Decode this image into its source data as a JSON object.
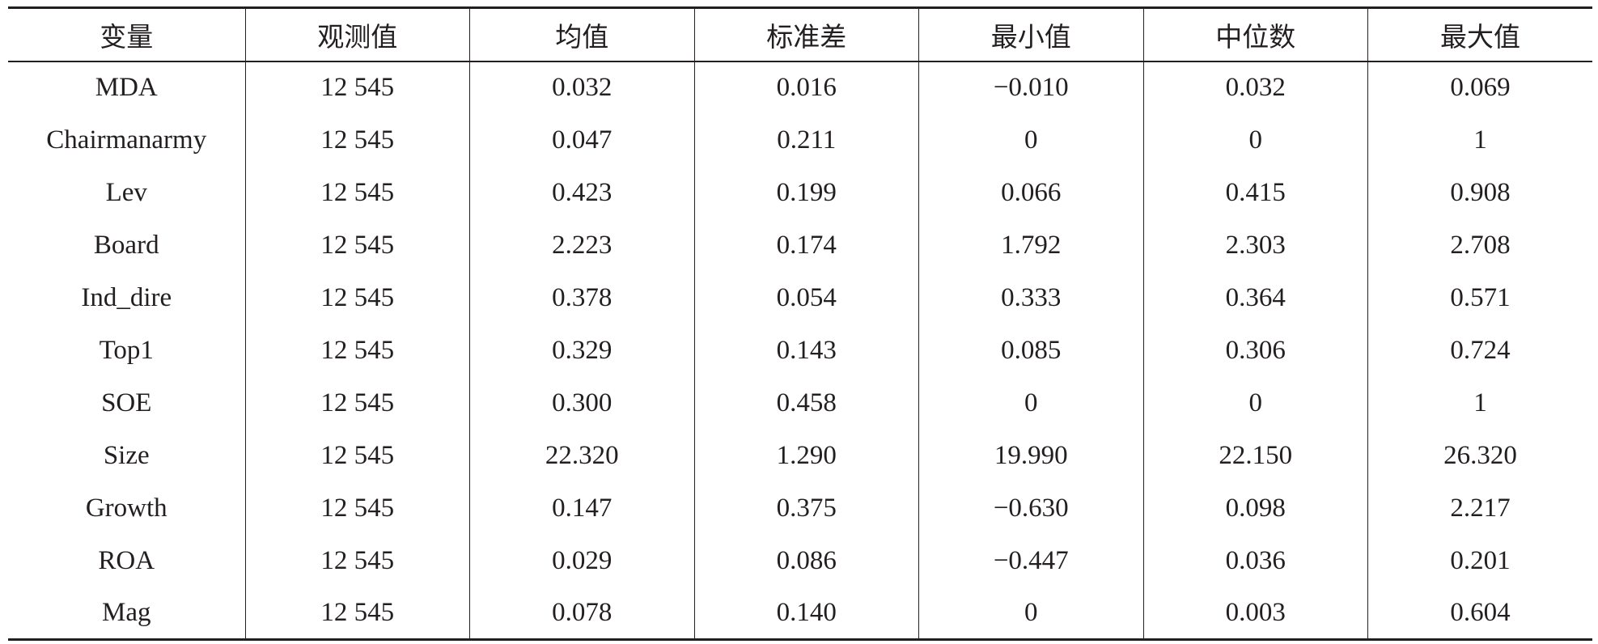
{
  "table": {
    "headers": [
      "变量",
      "观测值",
      "均值",
      "标准差",
      "最小值",
      "中位数",
      "最大值"
    ],
    "rows": [
      [
        "MDA",
        "12 545",
        "0.032",
        "0.016",
        "−0.010",
        "0.032",
        "0.069"
      ],
      [
        "Chairmanarmy",
        "12 545",
        "0.047",
        "0.211",
        "0",
        "0",
        "1"
      ],
      [
        "Lev",
        "12 545",
        "0.423",
        "0.199",
        "0.066",
        "0.415",
        "0.908"
      ],
      [
        "Board",
        "12 545",
        "2.223",
        "0.174",
        "1.792",
        "2.303",
        "2.708"
      ],
      [
        "Ind_dire",
        "12 545",
        "0.378",
        "0.054",
        "0.333",
        "0.364",
        "0.571"
      ],
      [
        "Top1",
        "12 545",
        "0.329",
        "0.143",
        "0.085",
        "0.306",
        "0.724"
      ],
      [
        "SOE",
        "12 545",
        "0.300",
        "0.458",
        "0",
        "0",
        "1"
      ],
      [
        "Size",
        "12 545",
        "22.320",
        "1.290",
        "19.990",
        "22.150",
        "26.320"
      ],
      [
        "Growth",
        "12 545",
        "0.147",
        "0.375",
        "−0.630",
        "0.098",
        "2.217"
      ],
      [
        "ROA",
        "12 545",
        "0.029",
        "0.086",
        "−0.447",
        "0.036",
        "0.201"
      ],
      [
        "Mag",
        "12 545",
        "0.078",
        "0.140",
        "0",
        "0.003",
        "0.604"
      ]
    ]
  }
}
